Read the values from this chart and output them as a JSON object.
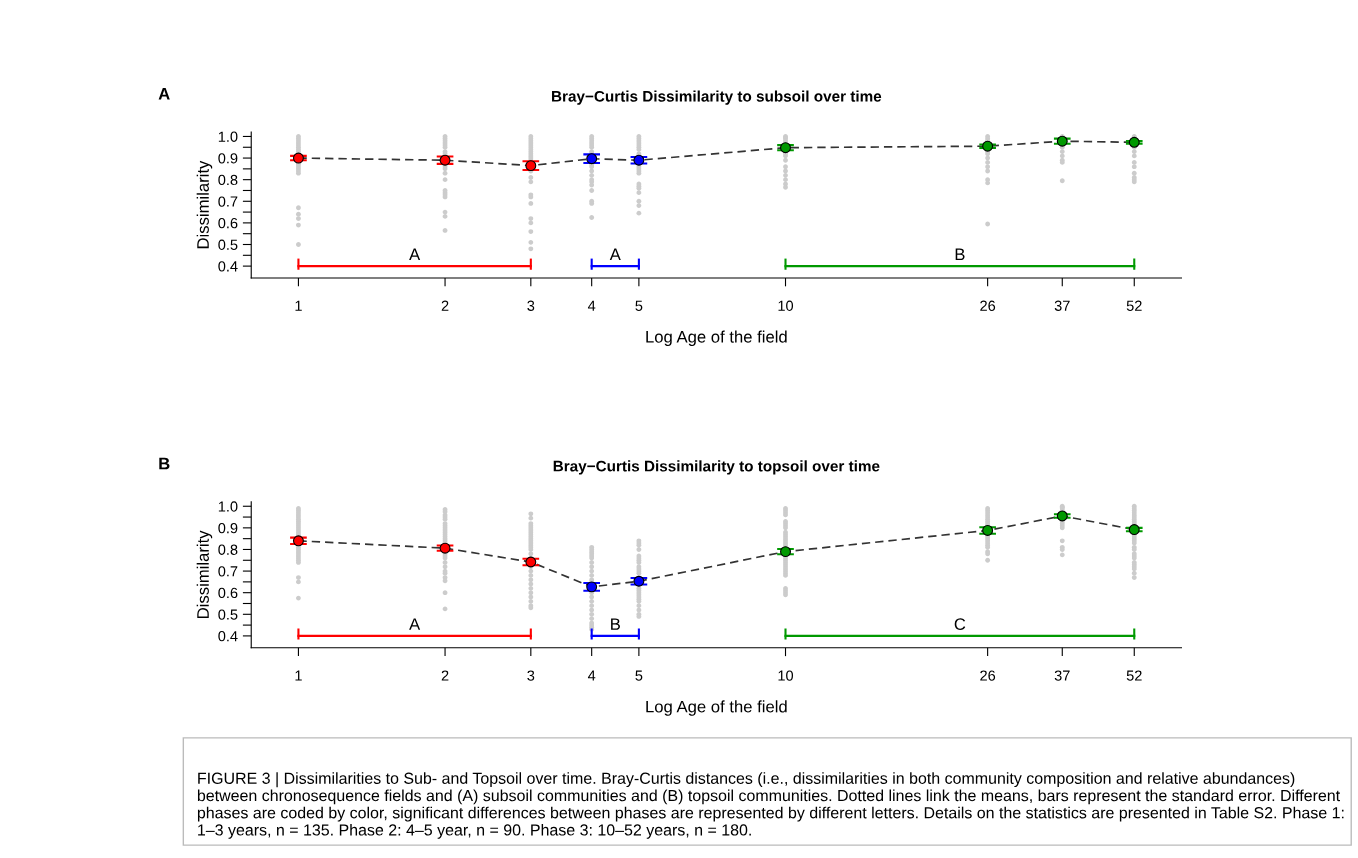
{
  "chart_data": [
    {
      "type": "scatter",
      "title": "Bray−Curtis Dissimilarity to subsoil over time",
      "xlabel": "Log Age of the field",
      "ylabel": "Dissimilarity",
      "log": "x",
      "xlim": [
        0.8,
        65
      ],
      "xticks": [
        1,
        2,
        3,
        4,
        5,
        10,
        26,
        37,
        52
      ],
      "ylim": [
        0.345,
        1.02
      ],
      "yticks": [
        0.4,
        {
          "value": 0.45,
          "label": null
        },
        0.5,
        {
          "value": 0.55,
          "label": null
        },
        0.6,
        {
          "value": 0.65,
          "label": null
        },
        0.7,
        {
          "value": 0.75,
          "label": null
        },
        0.8,
        {
          "value": 0.85,
          "label": null
        },
        0.9,
        {
          "value": 0.95,
          "label": null
        },
        {
          "value": 1.0,
          "label": "1.0"
        }
      ],
      "series": [
        {
          "color": "#cccccc",
          "x": [
            1,
            1,
            1,
            1,
            1,
            1,
            1,
            1,
            1,
            1,
            1,
            1,
            1,
            1,
            1,
            1,
            1,
            1,
            1,
            1,
            2,
            2,
            2,
            2,
            2,
            2,
            2,
            2,
            2,
            2,
            2,
            2,
            2,
            2,
            2,
            2,
            2,
            2,
            2,
            2,
            3,
            3,
            3,
            3,
            3,
            3,
            3,
            3,
            3,
            3,
            3,
            3,
            3,
            3,
            3,
            3,
            3,
            3,
            3,
            3,
            3,
            3,
            3,
            4,
            4,
            4,
            4,
            4,
            4,
            4,
            4,
            4,
            4,
            4,
            4,
            4,
            4,
            4,
            4,
            4,
            4,
            4,
            5,
            5,
            5,
            5,
            5,
            5,
            5,
            5,
            5,
            5,
            5,
            5,
            5,
            5,
            5,
            5,
            5,
            5,
            5,
            10,
            10,
            10,
            10,
            10,
            10,
            10,
            10,
            10,
            10,
            10,
            10,
            10,
            10,
            26,
            26,
            26,
            26,
            26,
            26,
            26,
            26,
            26,
            26,
            26,
            26,
            37,
            37,
            37,
            37,
            37,
            37,
            37,
            52,
            52,
            52,
            52,
            52,
            52,
            52,
            52,
            52,
            52
          ],
          "values": [
            1.0,
            0.99,
            0.98,
            0.97,
            0.96,
            0.95,
            0.94,
            0.93,
            0.92,
            0.88,
            0.87,
            0.86,
            0.85,
            0.84,
            0.83,
            0.67,
            0.64,
            0.62,
            0.59,
            0.5,
            1.0,
            0.99,
            0.98,
            0.97,
            0.96,
            0.95,
            0.93,
            0.92,
            0.87,
            0.86,
            0.85,
            0.83,
            0.8,
            0.75,
            0.74,
            0.73,
            0.72,
            0.65,
            0.63,
            0.565,
            1.0,
            0.99,
            0.98,
            0.97,
            0.96,
            0.95,
            0.94,
            0.93,
            0.92,
            0.91,
            0.9,
            0.89,
            0.84,
            0.81,
            0.79,
            0.73,
            0.72,
            0.69,
            0.62,
            0.6,
            0.56,
            0.51,
            0.48,
            1.0,
            0.99,
            0.98,
            0.97,
            0.96,
            0.95,
            0.93,
            0.92,
            0.87,
            0.86,
            0.84,
            0.82,
            0.8,
            0.79,
            0.775,
            0.75,
            0.7,
            0.69,
            0.625,
            1.0,
            0.99,
            0.98,
            0.97,
            0.96,
            0.95,
            0.94,
            0.92,
            0.86,
            0.85,
            0.84,
            0.83,
            0.78,
            0.77,
            0.76,
            0.74,
            0.7,
            0.68,
            0.645,
            1.0,
            0.995,
            0.99,
            0.98,
            0.97,
            0.92,
            0.91,
            0.89,
            0.86,
            0.84,
            0.82,
            0.8,
            0.78,
            0.765,
            1.0,
            0.99,
            0.98,
            0.93,
            0.92,
            0.9,
            0.88,
            0.86,
            0.84,
            0.8,
            0.785,
            0.595,
            1.0,
            0.95,
            0.93,
            0.91,
            0.89,
            0.88,
            0.795,
            1.0,
            0.95,
            0.93,
            0.91,
            0.88,
            0.86,
            0.83,
            0.81,
            0.8,
            0.79
          ]
        },
        {
          "type": "line",
          "color": "#333333",
          "line_style": "dashed",
          "marker": "none",
          "x": [
            1,
            2,
            3,
            4,
            5,
            10,
            26,
            37,
            52
          ],
          "values": [
            0.9,
            0.89,
            0.865,
            0.897,
            0.89,
            0.948,
            0.955,
            0.978,
            0.973
          ]
        },
        {
          "marker": "circle",
          "x": [
            1,
            2,
            3,
            4,
            5,
            10,
            26,
            37,
            52
          ],
          "values": [
            0.9,
            0.89,
            0.865,
            0.897,
            0.89,
            0.948,
            0.955,
            0.978,
            0.973
          ],
          "colors": [
            "#ff0000",
            "#ff0000",
            "#ff0000",
            "#0000ff",
            "#0000ff",
            "#009900",
            "#009900",
            "#009900",
            "#009900"
          ],
          "errors": [
            0.01,
            0.017,
            0.02,
            0.02,
            0.015,
            0.012,
            0.008,
            0.012,
            0.006
          ]
        }
      ],
      "annotations": [
        "A",
        "A",
        "A",
        "B"
      ]
    },
    {
      "type": "scatter",
      "title": "Bray−Curtis Dissimilarity to topsoil over time",
      "xlabel": "Log Age of the field",
      "ylabel": "Dissimilarity",
      "log": "x",
      "xlim": [
        0.8,
        65
      ],
      "xticks": [
        1,
        2,
        3,
        4,
        5,
        10,
        26,
        37,
        52
      ],
      "ylim": [
        0.345,
        1.02
      ],
      "yticks": [
        0.4,
        {
          "value": 0.45,
          "label": null
        },
        0.5,
        {
          "value": 0.55,
          "label": null
        },
        0.6,
        {
          "value": 0.65,
          "label": null
        },
        0.7,
        {
          "value": 0.75,
          "label": null
        },
        0.8,
        {
          "value": 0.85,
          "label": null
        },
        0.9,
        {
          "value": 0.95,
          "label": null
        },
        {
          "value": 1.0,
          "label": "1.0"
        }
      ],
      "series": [
        {
          "color": "#cccccc",
          "x": [
            1,
            1,
            1,
            1,
            1,
            1,
            1,
            1,
            1,
            1,
            1,
            1,
            1,
            1,
            1,
            1,
            1,
            1,
            1,
            1,
            1,
            1,
            1,
            1,
            1,
            2,
            2,
            2,
            2,
            2,
            2,
            2,
            2,
            2,
            2,
            2,
            2,
            2,
            2,
            2,
            2,
            2,
            2,
            2,
            2,
            2,
            2,
            2,
            2,
            2,
            2,
            3,
            3,
            3,
            3,
            3,
            3,
            3,
            3,
            3,
            3,
            3,
            3,
            3,
            3,
            3,
            3,
            3,
            3,
            3,
            3,
            3,
            3,
            3,
            3,
            3,
            3,
            3,
            3,
            4,
            4,
            4,
            4,
            4,
            4,
            4,
            4,
            4,
            4,
            4,
            4,
            4,
            4,
            4,
            4,
            4,
            4,
            4,
            4,
            4,
            4,
            4,
            5,
            5,
            5,
            5,
            5,
            5,
            5,
            5,
            5,
            5,
            5,
            5,
            5,
            5,
            5,
            5,
            5,
            5,
            5,
            5,
            5,
            5,
            5,
            5,
            10,
            10,
            10,
            10,
            10,
            10,
            10,
            10,
            10,
            10,
            10,
            10,
            10,
            10,
            10,
            10,
            10,
            10,
            10,
            10,
            10,
            10,
            10,
            10,
            10,
            10,
            10,
            10,
            26,
            26,
            26,
            26,
            26,
            26,
            26,
            26,
            26,
            26,
            26,
            26,
            26,
            26,
            26,
            26,
            26,
            26,
            37,
            37,
            37,
            37,
            37,
            37,
            37,
            37,
            37,
            37,
            37,
            37,
            52,
            52,
            52,
            52,
            52,
            52,
            52,
            52,
            52,
            52,
            52,
            52,
            52,
            52,
            52,
            52,
            52,
            52,
            52,
            52,
            52,
            52,
            52,
            52,
            52
          ],
          "values": [
            0.99,
            0.98,
            0.97,
            0.96,
            0.95,
            0.94,
            0.93,
            0.92,
            0.91,
            0.9,
            0.89,
            0.88,
            0.87,
            0.86,
            0.81,
            0.8,
            0.79,
            0.78,
            0.77,
            0.76,
            0.75,
            0.74,
            0.67,
            0.65,
            0.575,
            0.985,
            0.975,
            0.96,
            0.95,
            0.94,
            0.92,
            0.91,
            0.9,
            0.89,
            0.88,
            0.87,
            0.86,
            0.85,
            0.84,
            0.83,
            0.78,
            0.77,
            0.76,
            0.74,
            0.72,
            0.7,
            0.69,
            0.67,
            0.655,
            0.6,
            0.525,
            0.965,
            0.945,
            0.92,
            0.91,
            0.9,
            0.89,
            0.88,
            0.87,
            0.86,
            0.85,
            0.84,
            0.83,
            0.82,
            0.81,
            0.8,
            0.78,
            0.76,
            0.72,
            0.7,
            0.68,
            0.66,
            0.64,
            0.62,
            0.6,
            0.58,
            0.56,
            0.54,
            0.53,
            0.81,
            0.8,
            0.79,
            0.78,
            0.77,
            0.76,
            0.74,
            0.72,
            0.7,
            0.68,
            0.66,
            0.65,
            0.6,
            0.58,
            0.56,
            0.54,
            0.52,
            0.5,
            0.48,
            0.46,
            0.45,
            0.44,
            0.43,
            0.84,
            0.83,
            0.82,
            0.8,
            0.77,
            0.76,
            0.75,
            0.74,
            0.72,
            0.71,
            0.7,
            0.69,
            0.67,
            0.62,
            0.61,
            0.6,
            0.59,
            0.58,
            0.57,
            0.56,
            0.54,
            0.52,
            0.5,
            0.49,
            0.99,
            0.98,
            0.97,
            0.96,
            0.93,
            0.92,
            0.91,
            0.9,
            0.88,
            0.87,
            0.86,
            0.85,
            0.84,
            0.83,
            0.82,
            0.76,
            0.75,
            0.74,
            0.73,
            0.72,
            0.71,
            0.7,
            0.69,
            0.68,
            0.62,
            0.61,
            0.6,
            0.59,
            0.99,
            0.98,
            0.97,
            0.96,
            0.95,
            0.94,
            0.93,
            0.92,
            0.91,
            0.86,
            0.85,
            0.84,
            0.83,
            0.82,
            0.81,
            0.79,
            0.78,
            0.75,
            1.0,
            0.995,
            0.99,
            0.98,
            0.93,
            0.92,
            0.91,
            0.9,
            0.84,
            0.81,
            0.8,
            0.775,
            1.0,
            0.99,
            0.98,
            0.97,
            0.96,
            0.95,
            0.94,
            0.93,
            0.92,
            0.87,
            0.86,
            0.85,
            0.84,
            0.83,
            0.81,
            0.8,
            0.78,
            0.77,
            0.76,
            0.74,
            0.73,
            0.72,
            0.71,
            0.69,
            0.67
          ]
        },
        {
          "type": "line",
          "color": "#333333",
          "line_style": "dashed",
          "marker": "none",
          "x": [
            1,
            2,
            3,
            4,
            5,
            10,
            26,
            37,
            52
          ],
          "values": [
            0.84,
            0.806,
            0.742,
            0.627,
            0.653,
            0.79,
            0.888,
            0.955,
            0.892
          ]
        },
        {
          "marker": "circle",
          "x": [
            1,
            2,
            3,
            4,
            5,
            10,
            26,
            37,
            52
          ],
          "values": [
            0.84,
            0.806,
            0.742,
            0.627,
            0.653,
            0.79,
            0.888,
            0.955,
            0.892
          ],
          "colors": [
            "#ff0000",
            "#ff0000",
            "#ff0000",
            "#0000ff",
            "#0000ff",
            "#009900",
            "#009900",
            "#009900",
            "#009900"
          ],
          "errors": [
            0.015,
            0.012,
            0.015,
            0.018,
            0.015,
            0.012,
            0.015,
            0.008,
            0.008
          ]
        }
      ],
      "annotations": [
        "B",
        "A",
        "B",
        "C",
        "FIGURE 3 | Dissimilarities to Sub- and Topsoil over time. Bray-Curtis distances (i.e., dissimilarities in both community composition and relative abundances) between chronosequence fields and (A) subsoil communities and (B) topsoil communities. Dotted lines link the means, bars represent the standard error. Different phases are coded by color, significant differences between phases are represented by different letters. Details on the statistics are presented in Table S2. Phase 1: 1–3 years, n = 135. Phase 2: 4–5 year, n = 90. Phase 3: 10–52 years, n = 180."
      ]
    }
  ]
}
